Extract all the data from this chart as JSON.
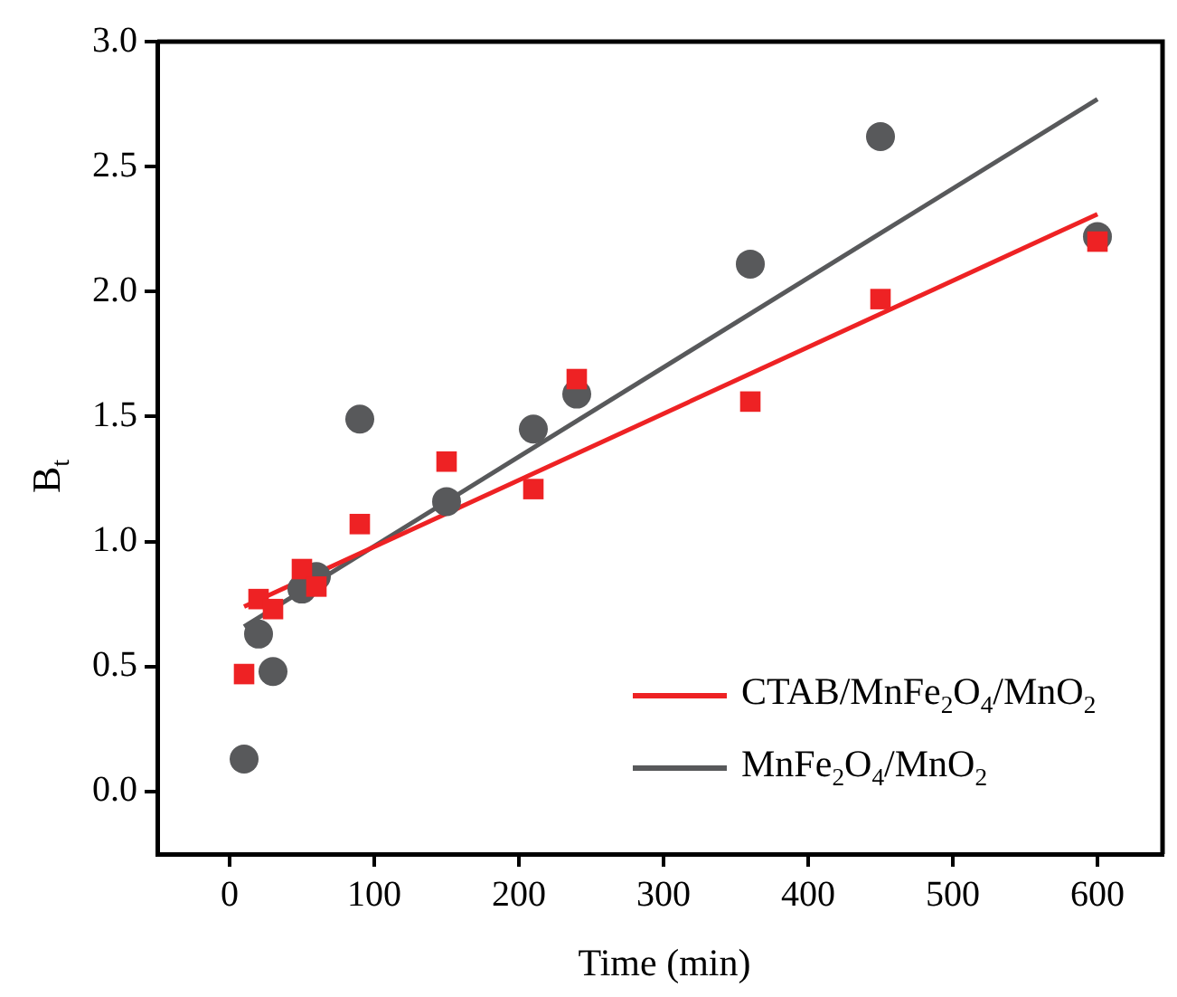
{
  "chart_data": {
    "type": "scatter",
    "xlabel": "Time (min)",
    "ylabel": "B$_{t}$",
    "xlim": [
      -50,
      645
    ],
    "xticks": [
      0,
      100,
      200,
      300,
      400,
      500,
      600
    ],
    "ylim": [
      -0.25,
      3.0
    ],
    "yticks": [
      {
        "value": 0,
        "label": "0.0"
      },
      0.5,
      {
        "value": 1,
        "label": "1.0"
      },
      1.5,
      {
        "value": 2,
        "label": "2.0"
      },
      2.5,
      {
        "value": 3,
        "label": "3.0"
      }
    ],
    "grid": false,
    "legend": "bottom right",
    "series": [
      {
        "marker": "square",
        "color": "#ee2224",
        "x": [
          10,
          20,
          30,
          50,
          60,
          90,
          150,
          210,
          240,
          360,
          450,
          600
        ],
        "values": [
          0.47,
          0.77,
          0.73,
          0.89,
          0.82,
          1.07,
          1.32,
          1.21,
          1.65,
          1.56,
          1.97,
          2.2
        ]
      },
      {
        "marker": "circle",
        "color": "#58595b",
        "x": [
          10,
          20,
          30,
          50,
          60,
          90,
          150,
          210,
          240,
          360,
          450,
          600
        ],
        "values": [
          0.13,
          0.63,
          0.48,
          0.81,
          0.86,
          1.49,
          1.16,
          1.45,
          1.59,
          2.11,
          2.62,
          2.22
        ]
      },
      {
        "type": "line",
        "marker": "none",
        "name": "CTAB/MnFe$_{2}$O$_{4}$/MnO$_{2}$",
        "color": "#ee2224",
        "x": [
          10,
          600
        ],
        "values": [
          0.74,
          2.31
        ]
      },
      {
        "type": "line",
        "marker": "none",
        "name": "MnFe$_{2}$O$_{4}$/MnO$_{2}$",
        "color": "#58595b",
        "x": [
          10,
          600
        ],
        "values": [
          0.66,
          2.77
        ]
      }
    ]
  }
}
